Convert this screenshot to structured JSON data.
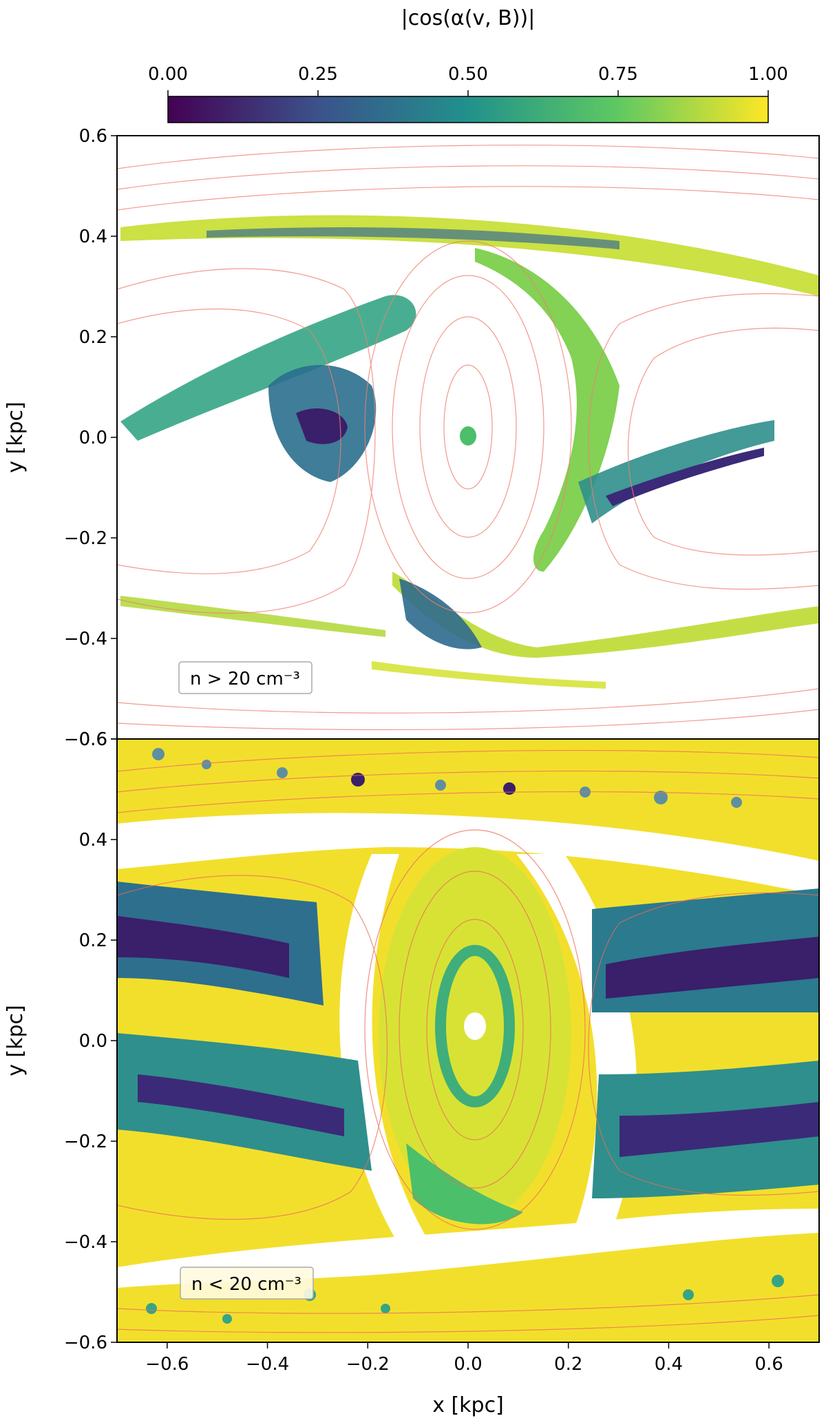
{
  "colorbar": {
    "label": "|cos(α(v, B))|",
    "ticks": [
      "0.00",
      "0.25",
      "0.50",
      "0.75",
      "1.00"
    ],
    "tick_values": [
      0.0,
      0.25,
      0.5,
      0.75,
      1.0
    ],
    "colormap": "viridis",
    "colors": [
      "#440154",
      "#3b528b",
      "#21918c",
      "#5ec962",
      "#fde725"
    ]
  },
  "chart_data": [
    {
      "type": "heatmap",
      "panel": "top",
      "annotation": "n > 20 cm⁻³",
      "xlabel": "",
      "ylabel": "y [kpc]",
      "xlim": [
        -0.7,
        0.7
      ],
      "ylim": [
        -0.6,
        0.6
      ],
      "x_ticks": [],
      "y_ticks": [
        "0.6",
        "0.4",
        "0.2",
        "0.0",
        "−0.2",
        "−0.4",
        "−0.6"
      ],
      "y_tick_values": [
        0.6,
        0.4,
        0.2,
        0.0,
        -0.2,
        -0.4,
        -0.6
      ],
      "streamline_color": "#f08070",
      "colorscale": [
        0,
        1
      ]
    },
    {
      "type": "heatmap",
      "panel": "bottom",
      "annotation": "n < 20 cm⁻³",
      "xlabel": "x [kpc]",
      "ylabel": "y [kpc]",
      "xlim": [
        -0.7,
        0.7
      ],
      "ylim": [
        -0.6,
        0.6
      ],
      "x_ticks": [
        "−0.6",
        "−0.4",
        "−0.2",
        "0.0",
        "0.2",
        "0.4",
        "0.6"
      ],
      "x_tick_values": [
        -0.6,
        -0.4,
        -0.2,
        0.0,
        0.2,
        0.4,
        0.6
      ],
      "y_ticks": [
        "0.6",
        "0.4",
        "0.2",
        "0.0",
        "−0.2",
        "−0.4",
        "−0.6"
      ],
      "y_tick_values": [
        0.6,
        0.4,
        0.2,
        0.0,
        -0.2,
        -0.4,
        -0.6
      ],
      "streamline_color": "#f08070",
      "colorscale": [
        0,
        1
      ]
    }
  ]
}
